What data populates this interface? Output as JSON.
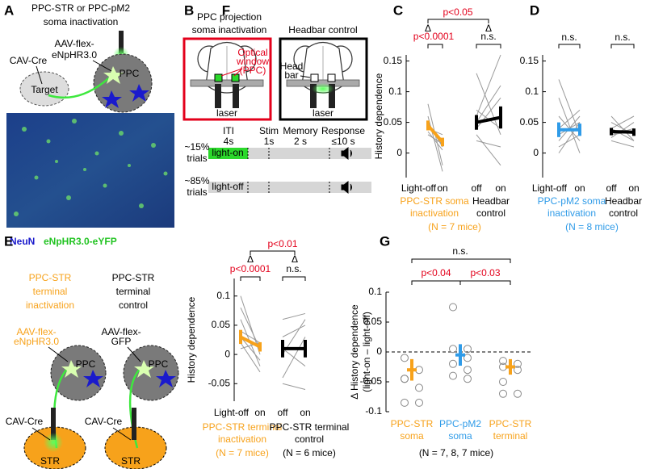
{
  "panels": {
    "A": {
      "label": "A",
      "title": [
        "PPC-STR or PPC-pM2",
        "soma inactivation"
      ],
      "virus": [
        "AAV-flex-",
        "eNpHR3.0"
      ],
      "cre": "CAV-Cre",
      "target": "Target",
      "region": "PPC",
      "stain": [
        "NeuN",
        "eNpHR3.0-eYFP"
      ]
    },
    "B": {
      "label": "B",
      "left_title": [
        "PPC projection",
        "soma inactivation"
      ],
      "right_title": "Headbar control",
      "window": [
        "Optical",
        "window",
        "(PPC)"
      ],
      "headbar": [
        "Head",
        "bar"
      ],
      "laser": [
        "laser",
        "laser"
      ],
      "epochs": [
        [
          "ITI",
          "4s"
        ],
        [
          "Stim",
          "1s"
        ],
        [
          "Memory",
          "2 s"
        ],
        [
          "Response",
          "≤10 s"
        ]
      ],
      "trials": [
        {
          "share": "~15%",
          "word": "trials",
          "condition": "light-on"
        },
        {
          "share": "~85%",
          "word": "trials",
          "condition": "light-off"
        }
      ]
    },
    "E": {
      "label": "E",
      "inactivation": [
        "PPC-STR",
        "terminal",
        "inactivation"
      ],
      "control": [
        "PPC-STR",
        "terminal",
        "control"
      ],
      "virus_left": [
        "AAV-flex-",
        "eNpHR3.0"
      ],
      "virus_right": [
        "AAV-flex-",
        "GFP"
      ],
      "region": [
        "PPC",
        "PPC"
      ],
      "cre": [
        "CAV-Cre",
        "CAV-Cre"
      ],
      "target": [
        "STR",
        "STR"
      ]
    }
  },
  "chart_data": [
    {
      "type": "paired",
      "label": "C",
      "ylabel": "History dependence",
      "ylim": [
        -0.04,
        0.16
      ],
      "yticks": [
        0,
        0.05,
        0.1,
        0.15
      ],
      "categories": [
        "Light-off",
        "on",
        "off",
        "on"
      ],
      "groups": [
        {
          "name": [
            "PPC-STR soma",
            "inactivation"
          ],
          "note": "(N = 7 mice)",
          "color": "#f7a21b",
          "mean": [
            0.045,
            0.018
          ],
          "sem": [
            0.008,
            0.007
          ],
          "individual": [
            [
              0.08,
              -0.02
            ],
            [
              0.06,
              -0.03
            ],
            [
              0.05,
              0.01
            ],
            [
              0.045,
              0.02
            ],
            [
              0.03,
              0.015
            ],
            [
              0.04,
              0.03
            ],
            [
              0.035,
              0.005
            ]
          ]
        },
        {
          "name": [
            "Headbar",
            "control"
          ],
          "color": "#000000",
          "mean": [
            0.05,
            0.058
          ],
          "sem": [
            0.012,
            0.018
          ],
          "individual": [
            [
              0.13,
              0.03
            ],
            [
              0.06,
              0.16
            ],
            [
              0.05,
              0.11
            ],
            [
              0.04,
              0.09
            ],
            [
              0.07,
              0.04
            ],
            [
              0.02,
              0.01
            ],
            [
              0.03,
              -0.02
            ],
            [
              0.05,
              0.06
            ]
          ]
        }
      ],
      "annotations": [
        "p<0.05",
        "Δ",
        "Δ",
        "p<0.0001",
        "n.s."
      ]
    },
    {
      "type": "paired",
      "label": "D",
      "ylim": [
        -0.04,
        0.16
      ],
      "yticks": [
        0,
        0.05,
        0.1,
        0.15
      ],
      "categories": [
        "Light-off",
        "on",
        "off",
        "on"
      ],
      "groups": [
        {
          "name": [
            "PPC-pM2 soma",
            "inactivation"
          ],
          "note": "(N = 8 mice)",
          "color": "#2f9be8",
          "mean": [
            0.038,
            0.038
          ],
          "sem": [
            0.012,
            0.01
          ],
          "individual": [
            [
              0.12,
              0.03
            ],
            [
              0.09,
              0.0
            ],
            [
              0.06,
              0.02
            ],
            [
              0.04,
              0.07
            ],
            [
              0.03,
              0.05
            ],
            [
              0.02,
              0.06
            ],
            [
              0.01,
              0.03
            ],
            [
              0.0,
              0.05
            ]
          ]
        },
        {
          "name": [
            "Headbar",
            "control"
          ],
          "color": "#000000",
          "mean": [
            0.035,
            0.034
          ],
          "sem": [
            0.006,
            0.006
          ],
          "individual": [
            [
              0.06,
              0.02
            ],
            [
              0.05,
              0.03
            ],
            [
              0.04,
              0.06
            ],
            [
              0.03,
              0.04
            ],
            [
              0.02,
              0.01
            ],
            [
              0.03,
              0.035
            ],
            [
              0.025,
              0.05
            ],
            [
              0.04,
              0.02
            ]
          ]
        }
      ],
      "annotations": [
        "n.s.",
        "n.s."
      ]
    },
    {
      "type": "paired",
      "label": "F",
      "ylabel": "History dependence",
      "ylim": [
        -0.08,
        0.13
      ],
      "yticks": [
        -0.05,
        0,
        0.05,
        0.1
      ],
      "categories": [
        "Light-off",
        "on",
        "off",
        "on"
      ],
      "groups": [
        {
          "name": [
            "PPC-STR terminal",
            "inactivation"
          ],
          "note": "(N = 7 mice)",
          "color": "#f7a21b",
          "mean": [
            0.03,
            0.013
          ],
          "sem": [
            0.012,
            0.008
          ],
          "individual": [
            [
              0.1,
              0.0
            ],
            [
              0.08,
              0.01
            ],
            [
              0.06,
              -0.02
            ],
            [
              0.04,
              0.02
            ],
            [
              0.02,
              -0.03
            ],
            [
              0.01,
              0.02
            ],
            [
              0.03,
              -0.01
            ]
          ]
        },
        {
          "name": [
            "PPC-STR terminal",
            "control"
          ],
          "note": "(N = 6 mice)",
          "color": "#000000",
          "mean": [
            0.01,
            0.01
          ],
          "sem": [
            0.015,
            0.015
          ],
          "individual": [
            [
              0.06,
              0.07
            ],
            [
              0.03,
              0.05
            ],
            [
              0.01,
              -0.02
            ],
            [
              -0.04,
              0.03
            ],
            [
              -0.05,
              -0.06
            ],
            [
              0.0,
              0.06
            ]
          ]
        }
      ],
      "annotations": [
        "p<0.01",
        "Δ",
        "Δ",
        "p<0.0001",
        "n.s."
      ]
    },
    {
      "type": "dots",
      "label": "G",
      "ylabel": [
        "Δ History  dependence",
        "(light-on – light-off)"
      ],
      "ylim": [
        -0.1,
        0.1
      ],
      "yticks": [
        -0.1,
        -0.05,
        0,
        0.05,
        0.1
      ],
      "categories": [
        "PPC-STR",
        "PPC-pM2",
        "PPC-STR"
      ],
      "subcategories": [
        "soma",
        "soma",
        "terminal"
      ],
      "colors": [
        "#f7a21b",
        "#2f9be8",
        "#f7a21b"
      ],
      "mean": [
        -0.03,
        -0.005,
        -0.025
      ],
      "sem": [
        0.018,
        0.018,
        0.013
      ],
      "individual": [
        [
          -0.01,
          -0.03,
          -0.045,
          -0.06,
          -0.085,
          -0.085,
          -0.045
        ],
        [
          0.075,
          0.005,
          0.005,
          -0.01,
          -0.02,
          -0.03,
          -0.04,
          -0.045
        ],
        [
          -0.015,
          -0.02,
          -0.025,
          -0.03,
          -0.05,
          -0.07,
          -0.07
        ]
      ],
      "note": "(N = 7, 8, 7 mice)",
      "annotations": [
        "n.s.",
        "p<0.04",
        "p<0.03"
      ]
    }
  ]
}
